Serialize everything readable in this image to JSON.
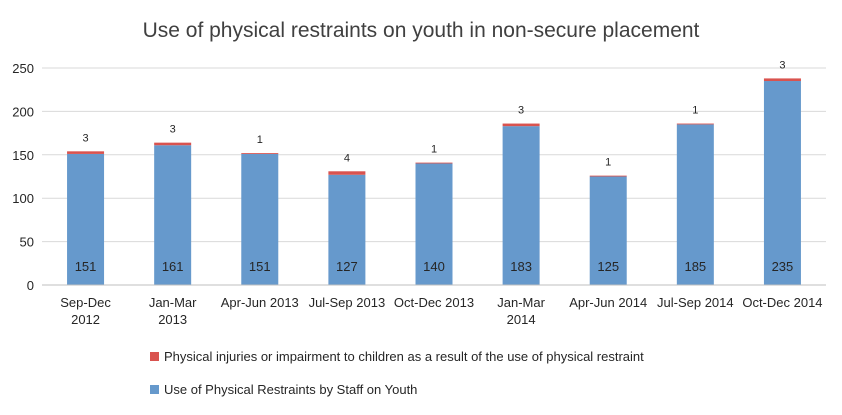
{
  "chart_data": {
    "type": "bar",
    "stacked": true,
    "title": "Use of physical restraints on youth in non-secure placement",
    "xlabel": "",
    "ylabel": "",
    "ylim": [
      0,
      250
    ],
    "yticks": [
      0,
      50,
      100,
      150,
      200,
      250
    ],
    "grid": true,
    "legend_position": "bottom",
    "categories": [
      [
        "Sep-Dec",
        "2012"
      ],
      [
        "Jan-Mar",
        "2013"
      ],
      [
        "Apr-Jun 2013"
      ],
      [
        "Jul-Sep 2013"
      ],
      [
        "Oct-Dec 2013"
      ],
      [
        "Jan-Mar",
        "2014"
      ],
      [
        "Apr-Jun 2014"
      ],
      [
        "Jul-Sep 2014"
      ],
      [
        "Oct-Dec 2014"
      ]
    ],
    "series": [
      {
        "name": "Use of Physical Restraints by Staff on Youth",
        "color": "#6699cc",
        "values": [
          151,
          161,
          151,
          127,
          140,
          183,
          125,
          185,
          235
        ]
      },
      {
        "name": "Physical injuries or impairment to children as a result of the use of physical restraint",
        "color": "#d9534f",
        "values": [
          3,
          3,
          1,
          4,
          1,
          3,
          1,
          1,
          3
        ]
      }
    ],
    "legend_order": [
      1,
      0
    ]
  }
}
